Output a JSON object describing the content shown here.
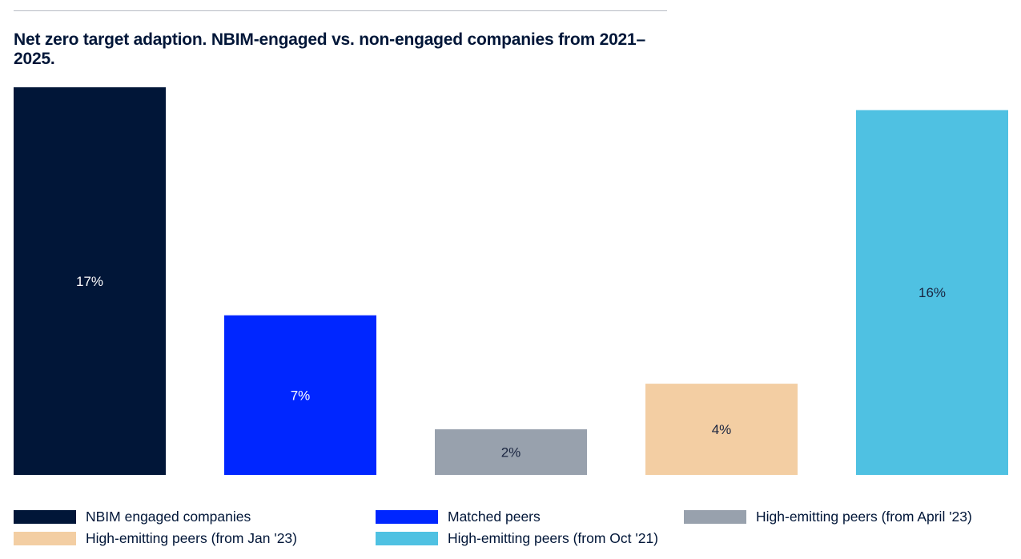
{
  "title": "Net zero target adaption. NBIM-engaged vs. non-engaged companies from 2021–2025.",
  "chart_data": {
    "type": "bar",
    "title": "Net zero target adaption. NBIM-engaged vs. non-engaged companies from 2021–2025.",
    "xlabel": "",
    "ylabel": "",
    "ylim": [
      0,
      17
    ],
    "grid": false,
    "legend_position": "bottom",
    "categories": [
      "NBIM engaged companies",
      "Matched peers",
      "High-emitting peers (from April '23)",
      "High-emitting peers (from Jan '23)",
      "High-emitting peers (from Oct '21)"
    ],
    "values": [
      17,
      7,
      2,
      4,
      16
    ],
    "data_labels": [
      "17%",
      "7%",
      "2%",
      "4%",
      "16%"
    ],
    "colors": [
      "#011638",
      "#0026ff",
      "#98a1ad",
      "#f3cea3",
      "#4fc1e2"
    ],
    "label_colors": [
      "#ffffff",
      "#ffffff",
      "#1a2540",
      "#1a2540",
      "#1a2540"
    ],
    "legend": [
      {
        "label": "NBIM engaged companies",
        "color": "#011638"
      },
      {
        "label": "Matched peers",
        "color": "#0026ff"
      },
      {
        "label": "High-emitting peers (from April '23)",
        "color": "#98a1ad"
      },
      {
        "label": "High-emitting peers (from Jan '23)",
        "color": "#f3cea3"
      },
      {
        "label": "High-emitting peers (from Oct '21)",
        "color": "#4fc1e2"
      }
    ]
  }
}
